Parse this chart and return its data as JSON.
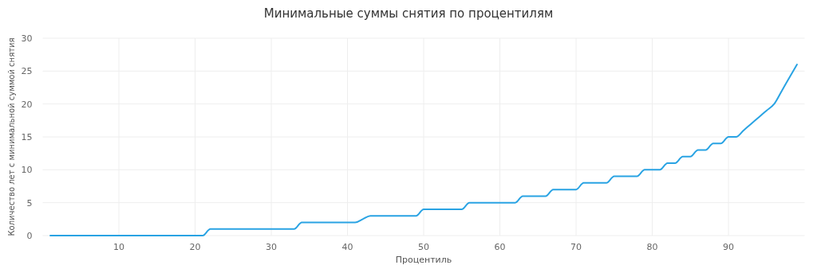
{
  "chart_data": {
    "type": "line",
    "title": "Минимальные суммы снятия по процентилям",
    "xlabel": "Процентиль",
    "ylabel": "Количество лет с минимальной суммой снятия",
    "x": [
      1,
      2,
      3,
      4,
      5,
      6,
      7,
      8,
      9,
      10,
      11,
      12,
      13,
      14,
      15,
      16,
      17,
      18,
      19,
      20,
      21,
      22,
      23,
      24,
      25,
      26,
      27,
      28,
      29,
      30,
      31,
      32,
      33,
      34,
      35,
      36,
      37,
      38,
      39,
      40,
      41,
      42,
      43,
      44,
      45,
      46,
      47,
      48,
      49,
      50,
      51,
      52,
      53,
      54,
      55,
      56,
      57,
      58,
      59,
      60,
      61,
      62,
      63,
      64,
      65,
      66,
      67,
      68,
      69,
      70,
      71,
      72,
      73,
      74,
      75,
      76,
      77,
      78,
      79,
      80,
      81,
      82,
      83,
      84,
      85,
      86,
      87,
      88,
      89,
      90,
      91,
      92,
      93,
      94,
      95,
      96,
      97,
      98,
      99
    ],
    "series": [
      {
        "color": "#29a3e3",
        "values": [
          0,
          0,
          0,
          0,
          0,
          0,
          0,
          0,
          0,
          0,
          0,
          0,
          0,
          0,
          0,
          0,
          0,
          0,
          0,
          0,
          0,
          1,
          1,
          1,
          1,
          1,
          1,
          1,
          1,
          1,
          1,
          1,
          1,
          2,
          2,
          2,
          2,
          2,
          2,
          2,
          2,
          2.5,
          3,
          3,
          3,
          3,
          3,
          3,
          3,
          4,
          4,
          4,
          4,
          4,
          4,
          5,
          5,
          5,
          5,
          5,
          5,
          5,
          6,
          6,
          6,
          6,
          7,
          7,
          7,
          7,
          8,
          8,
          8,
          8,
          9,
          9,
          9,
          9,
          10,
          10,
          10,
          11,
          11,
          12,
          12,
          13,
          13,
          14,
          14,
          15,
          15,
          16,
          17,
          18,
          19,
          20,
          22,
          24,
          26
        ]
      }
    ],
    "xlim": [
      0,
      100
    ],
    "xticks": [
      10,
      20,
      30,
      40,
      50,
      60,
      70,
      80,
      90
    ],
    "ylim": [
      0,
      30
    ],
    "yticks": [
      0,
      5,
      10,
      15,
      20,
      25,
      30
    ],
    "grid": true,
    "marker": "none",
    "line_style": "solid"
  }
}
